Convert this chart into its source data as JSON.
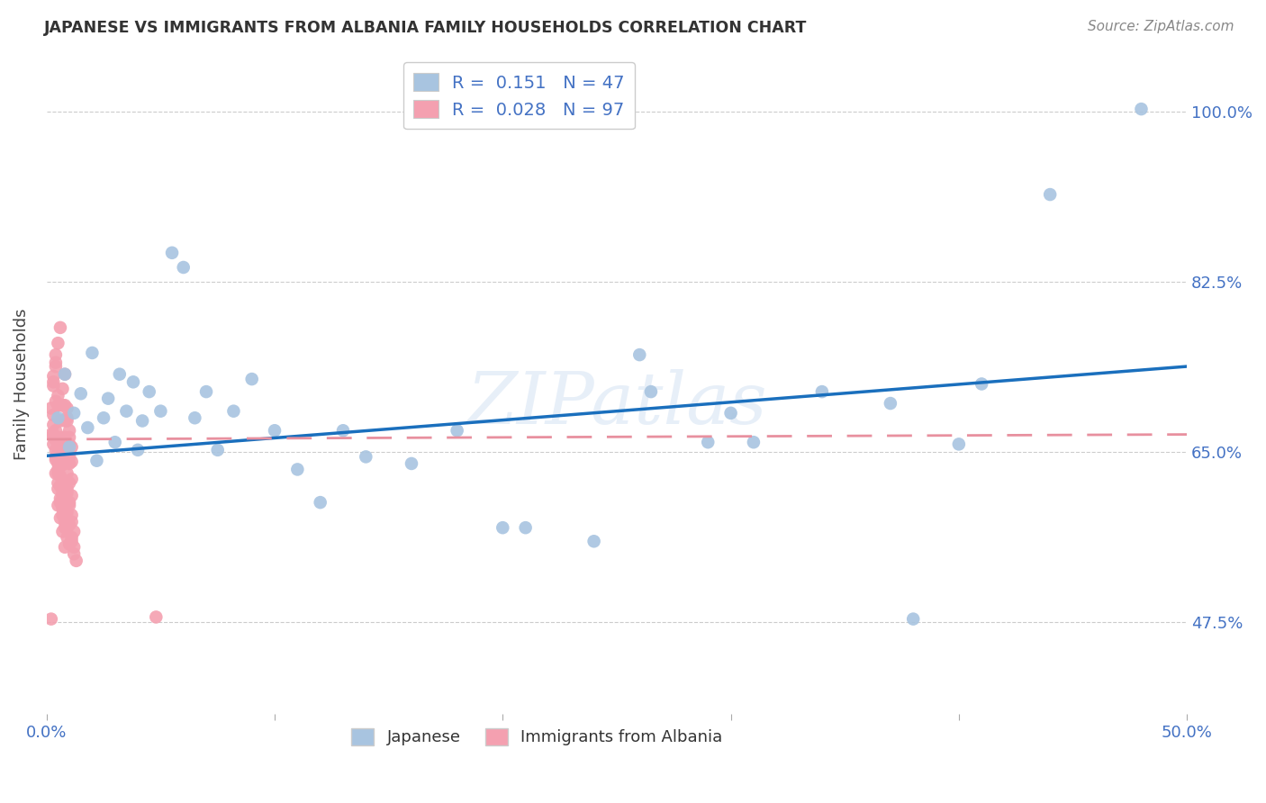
{
  "title": "JAPANESE VS IMMIGRANTS FROM ALBANIA FAMILY HOUSEHOLDS CORRELATION CHART",
  "source": "Source: ZipAtlas.com",
  "ylabel": "Family Households",
  "color_japanese": "#a8c4e0",
  "color_albania": "#f4a0b0",
  "trendline_japanese": "#1a6fbd",
  "trendline_albania": "#e8909f",
  "xlim": [
    0.0,
    0.5
  ],
  "ylim": [
    0.38,
    1.06
  ],
  "ytick_values": [
    0.475,
    0.65,
    0.825,
    1.0
  ],
  "ytick_labels": [
    "47.5%",
    "65.0%",
    "82.5%",
    "100.0%"
  ],
  "xtick_values": [
    0.0,
    0.5
  ],
  "xtick_labels": [
    "0.0%",
    "50.0%"
  ],
  "jp_x": [
    0.005,
    0.008,
    0.01,
    0.012,
    0.015,
    0.018,
    0.02,
    0.022,
    0.025,
    0.027,
    0.03,
    0.032,
    0.035,
    0.038,
    0.04,
    0.042,
    0.045,
    0.05,
    0.055,
    0.06,
    0.065,
    0.07,
    0.075,
    0.082,
    0.09,
    0.1,
    0.11,
    0.12,
    0.13,
    0.14,
    0.16,
    0.18,
    0.21,
    0.24,
    0.265,
    0.29,
    0.31,
    0.34,
    0.37,
    0.41,
    0.44,
    0.38,
    0.48,
    0.4,
    0.26,
    0.3,
    0.2
  ],
  "jp_y": [
    0.685,
    0.73,
    0.655,
    0.69,
    0.71,
    0.675,
    0.752,
    0.641,
    0.685,
    0.705,
    0.66,
    0.73,
    0.692,
    0.722,
    0.652,
    0.682,
    0.712,
    0.692,
    0.855,
    0.84,
    0.685,
    0.712,
    0.652,
    0.692,
    0.725,
    0.672,
    0.632,
    0.598,
    0.672,
    0.645,
    0.638,
    0.672,
    0.572,
    0.558,
    0.712,
    0.66,
    0.66,
    0.712,
    0.7,
    0.72,
    0.915,
    0.478,
    1.003,
    0.658,
    0.75,
    0.69,
    0.572
  ],
  "al_x": [
    0.002,
    0.003,
    0.004,
    0.005,
    0.006,
    0.007,
    0.008,
    0.009,
    0.01,
    0.002,
    0.003,
    0.004,
    0.005,
    0.006,
    0.007,
    0.008,
    0.009,
    0.01,
    0.003,
    0.004,
    0.005,
    0.006,
    0.007,
    0.008,
    0.009,
    0.01,
    0.011,
    0.003,
    0.004,
    0.005,
    0.006,
    0.007,
    0.008,
    0.009,
    0.01,
    0.011,
    0.003,
    0.004,
    0.005,
    0.006,
    0.007,
    0.008,
    0.009,
    0.01,
    0.011,
    0.003,
    0.004,
    0.005,
    0.006,
    0.007,
    0.008,
    0.009,
    0.01,
    0.011,
    0.003,
    0.004,
    0.005,
    0.006,
    0.007,
    0.008,
    0.009,
    0.01,
    0.011,
    0.004,
    0.005,
    0.006,
    0.007,
    0.008,
    0.009,
    0.01,
    0.011,
    0.012,
    0.004,
    0.005,
    0.006,
    0.007,
    0.008,
    0.009,
    0.01,
    0.011,
    0.012,
    0.005,
    0.006,
    0.007,
    0.008,
    0.009,
    0.01,
    0.011,
    0.012,
    0.013,
    0.005,
    0.006,
    0.007,
    0.008,
    0.002,
    0.003,
    0.004,
    0.048
  ],
  "al_y": [
    0.695,
    0.728,
    0.75,
    0.762,
    0.778,
    0.715,
    0.73,
    0.685,
    0.665,
    0.668,
    0.722,
    0.742,
    0.708,
    0.698,
    0.698,
    0.698,
    0.682,
    0.645,
    0.718,
    0.702,
    0.698,
    0.682,
    0.665,
    0.682,
    0.695,
    0.672,
    0.655,
    0.688,
    0.672,
    0.658,
    0.642,
    0.655,
    0.665,
    0.645,
    0.658,
    0.64,
    0.678,
    0.662,
    0.649,
    0.635,
    0.648,
    0.638,
    0.628,
    0.638,
    0.622,
    0.668,
    0.652,
    0.638,
    0.625,
    0.618,
    0.618,
    0.612,
    0.618,
    0.605,
    0.658,
    0.642,
    0.628,
    0.615,
    0.608,
    0.598,
    0.608,
    0.598,
    0.585,
    0.645,
    0.632,
    0.615,
    0.605,
    0.595,
    0.588,
    0.595,
    0.578,
    0.568,
    0.628,
    0.618,
    0.602,
    0.592,
    0.578,
    0.572,
    0.575,
    0.562,
    0.552,
    0.612,
    0.598,
    0.585,
    0.572,
    0.562,
    0.555,
    0.558,
    0.545,
    0.538,
    0.595,
    0.582,
    0.568,
    0.552,
    0.478,
    0.668,
    0.738,
    0.48
  ],
  "jp_trend_x": [
    0.0,
    0.5
  ],
  "jp_trend_y": [
    0.646,
    0.738
  ],
  "al_trend_x": [
    0.0,
    0.5
  ],
  "al_trend_y": [
    0.663,
    0.668
  ],
  "watermark": "ZIPatlas",
  "watermark_color": "#c5d8ee",
  "watermark_alpha": 0.4
}
